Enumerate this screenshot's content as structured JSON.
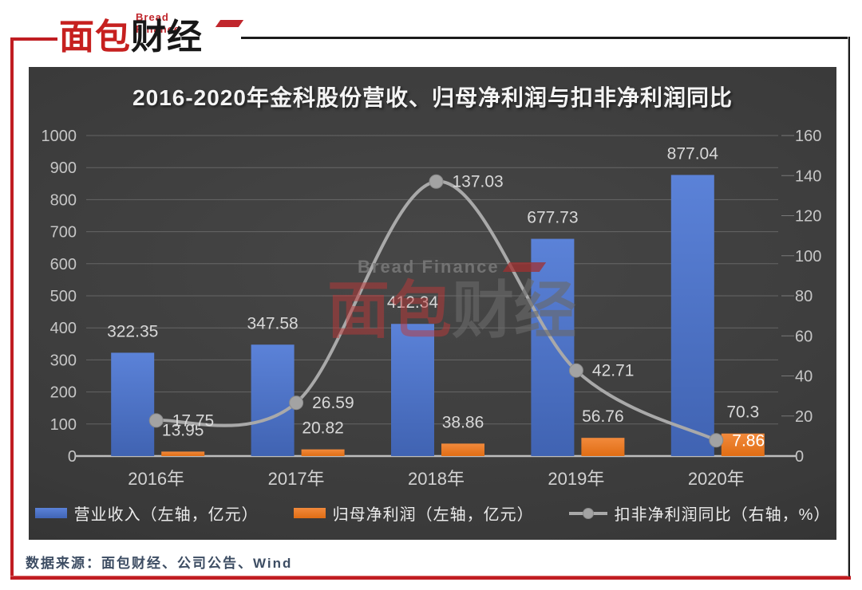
{
  "brand": {
    "logo_red": "面包",
    "logo_black": "财经",
    "logo_sub": "Bread Finance"
  },
  "watermark": {
    "sub": "Bread Finance",
    "red_part": "面包",
    "gray_part": "财经"
  },
  "source_note": "数据来源：面包财经、公司公告、Wind",
  "colors": {
    "frame_red": "#c01d22",
    "frame_black": "#1b1b1b",
    "panel_bg": "#3a3a3a",
    "bar_blue": "#4a73cb",
    "bar_orange": "#ed7d31",
    "line_gray": "#a9a9a9",
    "label_light": "#d8d8d8",
    "axis_text": "#c6c6c6"
  },
  "chart_data": {
    "type": "combo (bar + line)",
    "title": "2016-2020年金科股份营收、归母净利润与扣非净利润同比",
    "categories": [
      "2016年",
      "2017年",
      "2018年",
      "2019年",
      "2020年"
    ],
    "series": [
      {
        "name": "营业收入（左轴，亿元）",
        "type": "bar",
        "axis": "left",
        "color": "#4a73cb",
        "values": [
          322.35,
          347.58,
          412.34,
          677.73,
          877.04
        ]
      },
      {
        "name": "归母净利润（左轴，亿元）",
        "type": "bar",
        "axis": "left",
        "color": "#ed7d31",
        "values": [
          13.95,
          20.82,
          38.86,
          56.76,
          70.3
        ]
      },
      {
        "name": "扣非净利润同比（右轴，%）",
        "type": "line",
        "axis": "right",
        "color": "#a9a9a9",
        "values": [
          17.75,
          26.59,
          137.03,
          42.71,
          7.86
        ],
        "label_colors": [
          "#d8d8d8",
          "#d8d8d8",
          "#d8d8d8",
          "#d8d8d8",
          "#ffffff"
        ]
      }
    ],
    "left_axis": {
      "min": 0,
      "max": 1000,
      "step": 100
    },
    "right_axis": {
      "min": 0,
      "max": 160,
      "step": 20
    },
    "grid": true,
    "legend_position": "bottom"
  }
}
